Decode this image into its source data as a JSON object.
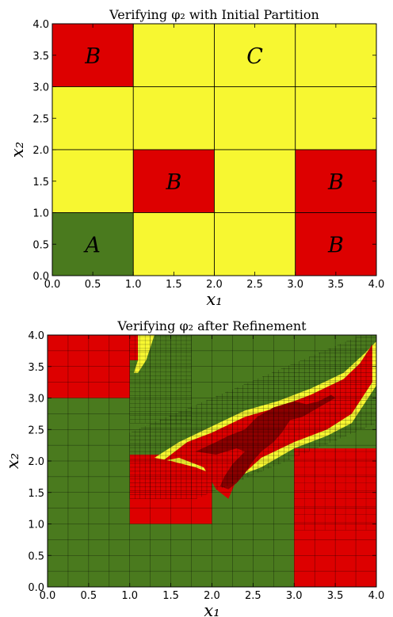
{
  "colors": {
    "green": "#4a7a1e",
    "yellow": "#f7f731",
    "red": "#dd0000",
    "darkred": "#8a0000",
    "grid": "#000000"
  },
  "chart_data": [
    {
      "type": "heatmap",
      "title": "Verifying φ₂ with Initial Partition",
      "xlabel": "x₁",
      "ylabel": "x₂",
      "xlim": [
        0,
        4
      ],
      "ylim": [
        0,
        4
      ],
      "xticks": [
        "0.0",
        "0.5",
        "1.0",
        "1.5",
        "2.0",
        "2.5",
        "3.0",
        "3.5",
        "4.0"
      ],
      "yticks": [
        "0.0",
        "0.5",
        "1.0",
        "1.5",
        "2.0",
        "2.5",
        "3.0",
        "3.5",
        "4.0"
      ],
      "cells": [
        {
          "x0": 0,
          "x1": 1,
          "y0": 3,
          "y1": 4,
          "color": "red",
          "label": "B"
        },
        {
          "x0": 1,
          "x1": 2,
          "y0": 3,
          "y1": 4,
          "color": "yellow",
          "label": ""
        },
        {
          "x0": 2,
          "x1": 3,
          "y0": 3,
          "y1": 4,
          "color": "yellow",
          "label": "C"
        },
        {
          "x0": 3,
          "x1": 4,
          "y0": 3,
          "y1": 4,
          "color": "yellow",
          "label": ""
        },
        {
          "x0": 0,
          "x1": 1,
          "y0": 2,
          "y1": 3,
          "color": "yellow",
          "label": ""
        },
        {
          "x0": 1,
          "x1": 2,
          "y0": 2,
          "y1": 3,
          "color": "yellow",
          "label": ""
        },
        {
          "x0": 2,
          "x1": 3,
          "y0": 2,
          "y1": 3,
          "color": "yellow",
          "label": ""
        },
        {
          "x0": 3,
          "x1": 4,
          "y0": 2,
          "y1": 3,
          "color": "yellow",
          "label": ""
        },
        {
          "x0": 0,
          "x1": 1,
          "y0": 1,
          "y1": 2,
          "color": "yellow",
          "label": ""
        },
        {
          "x0": 1,
          "x1": 2,
          "y0": 1,
          "y1": 2,
          "color": "red",
          "label": "B"
        },
        {
          "x0": 2,
          "x1": 3,
          "y0": 1,
          "y1": 2,
          "color": "yellow",
          "label": ""
        },
        {
          "x0": 3,
          "x1": 4,
          "y0": 1,
          "y1": 2,
          "color": "red",
          "label": "B"
        },
        {
          "x0": 0,
          "x1": 1,
          "y0": 0,
          "y1": 1,
          "color": "green",
          "label": "A"
        },
        {
          "x0": 1,
          "x1": 2,
          "y0": 0,
          "y1": 1,
          "color": "yellow",
          "label": ""
        },
        {
          "x0": 2,
          "x1": 3,
          "y0": 0,
          "y1": 1,
          "color": "yellow",
          "label": ""
        },
        {
          "x0": 3,
          "x1": 4,
          "y0": 0,
          "y1": 1,
          "color": "red",
          "label": "B"
        }
      ]
    },
    {
      "type": "heatmap",
      "title": "Verifying φ₂ after Refinement",
      "xlabel": "x₁",
      "ylabel": "x₂",
      "xlim": [
        0,
        4
      ],
      "ylim": [
        0,
        4
      ],
      "xticks": [
        "0.0",
        "0.5",
        "1.0",
        "1.5",
        "2.0",
        "2.5",
        "3.0",
        "3.5",
        "4.0"
      ],
      "yticks": [
        "0.0",
        "0.5",
        "1.0",
        "1.5",
        "2.0",
        "2.5",
        "3.0",
        "3.5",
        "4.0"
      ],
      "background": "green",
      "regions": [
        {
          "color": "red",
          "points": [
            [
              0,
              3
            ],
            [
              1,
              3
            ],
            [
              1,
              4
            ],
            [
              0,
              4
            ]
          ]
        },
        {
          "color": "red",
          "points": [
            [
              1,
              1
            ],
            [
              2,
              1
            ],
            [
              2,
              2.1
            ],
            [
              1,
              2.1
            ]
          ]
        },
        {
          "color": "red",
          "points": [
            [
              3,
              0
            ],
            [
              4,
              0
            ],
            [
              4,
              2.2
            ],
            [
              3,
              2.2
            ]
          ]
        },
        {
          "color": "red",
          "points": [
            [
              1,
              4
            ],
            [
              1.1,
              4
            ],
            [
              1.1,
              3.6
            ],
            [
              1,
              3.6
            ]
          ]
        },
        {
          "color": "yellow",
          "points": [
            [
              1.1,
              4
            ],
            [
              1.3,
              4
            ],
            [
              1.2,
              3.6
            ],
            [
              1.1,
              3.4
            ],
            [
              1.05,
              3.4
            ],
            [
              1.1,
              3.6
            ]
          ]
        },
        {
          "color": "yellow",
          "points": [
            [
              1.3,
              2.05
            ],
            [
              1.6,
              2.3
            ],
            [
              2.0,
              2.55
            ],
            [
              2.4,
              2.8
            ],
            [
              2.8,
              2.95
            ],
            [
              3.2,
              3.15
            ],
            [
              3.6,
              3.4
            ],
            [
              3.85,
              3.7
            ],
            [
              4,
              3.9
            ],
            [
              4,
              3.2
            ],
            [
              3.7,
              2.6
            ],
            [
              3.4,
              2.4
            ],
            [
              3.0,
              2.2
            ],
            [
              2.6,
              1.9
            ],
            [
              2.2,
              1.7
            ],
            [
              1.8,
              1.9
            ],
            [
              1.5,
              2.0
            ]
          ]
        },
        {
          "color": "red",
          "points": [
            [
              1.4,
              2.0
            ],
            [
              1.7,
              2.3
            ],
            [
              2.0,
              2.45
            ],
            [
              2.4,
              2.7
            ],
            [
              2.8,
              2.85
            ],
            [
              3.2,
              3.05
            ],
            [
              3.6,
              3.3
            ],
            [
              3.8,
              3.55
            ],
            [
              3.95,
              3.85
            ],
            [
              3.95,
              3.25
            ],
            [
              3.7,
              2.75
            ],
            [
              3.4,
              2.5
            ],
            [
              3.0,
              2.3
            ],
            [
              2.6,
              2.05
            ],
            [
              2.3,
              1.7
            ],
            [
              2.2,
              1.4
            ],
            [
              2.05,
              1.55
            ],
            [
              1.9,
              1.9
            ],
            [
              1.6,
              2.05
            ]
          ]
        },
        {
          "color": "darkred",
          "points": [
            [
              1.8,
              2.15
            ],
            [
              2.05,
              2.3
            ],
            [
              2.2,
              2.4
            ],
            [
              2.4,
              2.5
            ],
            [
              2.55,
              2.7
            ],
            [
              2.75,
              2.85
            ],
            [
              3.0,
              2.95
            ],
            [
              3.15,
              2.9
            ],
            [
              3.3,
              2.95
            ],
            [
              3.45,
              3.05
            ],
            [
              3.5,
              3.0
            ],
            [
              3.3,
              2.85
            ],
            [
              3.1,
              2.7
            ],
            [
              2.95,
              2.65
            ],
            [
              2.85,
              2.45
            ],
            [
              2.75,
              2.3
            ],
            [
              2.6,
              2.15
            ],
            [
              2.5,
              2.0
            ],
            [
              2.4,
              1.8
            ],
            [
              2.3,
              1.65
            ],
            [
              2.2,
              1.55
            ],
            [
              2.1,
              1.6
            ],
            [
              2.15,
              1.75
            ],
            [
              2.25,
              1.95
            ],
            [
              2.4,
              2.15
            ],
            [
              2.3,
              2.2
            ],
            [
              2.05,
              2.1
            ]
          ]
        }
      ]
    }
  ]
}
